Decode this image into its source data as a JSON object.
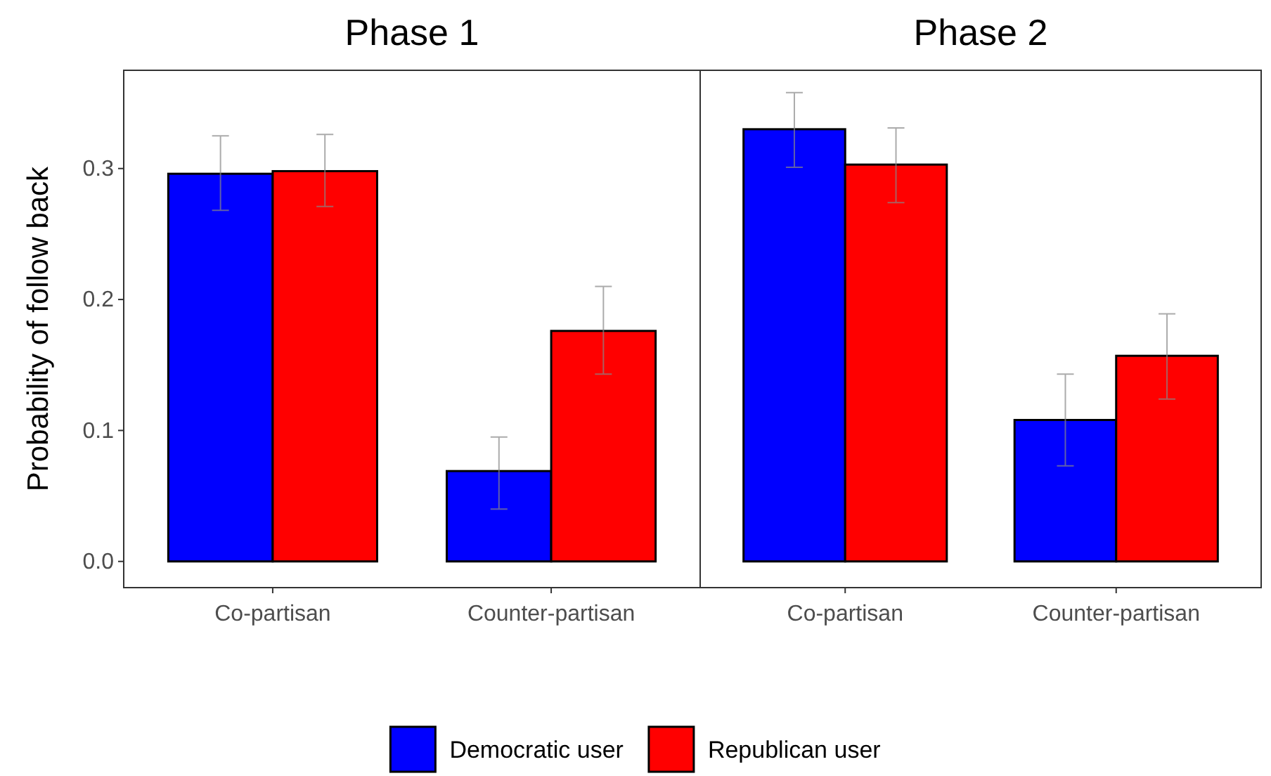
{
  "chart_data": [
    {
      "type": "bar",
      "title": "Phase 1",
      "ylabel": "Probability of follow back",
      "categories": [
        "Co-partisan",
        "Counter-partisan"
      ],
      "ylim": [
        -0.02,
        0.375
      ],
      "yticks": [
        {
          "value": 0,
          "label": "0.0"
        },
        0.1,
        0.2,
        0.3
      ],
      "grid": false,
      "legend": "bottom",
      "series": [
        {
          "name": "Democratic user",
          "color": "#0000ff",
          "values": [
            0.296,
            0.069
          ],
          "errors": [
            [
              0.268,
              0.325
            ],
            [
              0.04,
              0.095
            ]
          ]
        },
        {
          "name": "Republican user",
          "color": "#ff0000",
          "values": [
            0.298,
            0.176
          ],
          "errors": [
            [
              0.271,
              0.326
            ],
            [
              0.143,
              0.21
            ]
          ]
        }
      ]
    },
    {
      "type": "bar",
      "title": "Phase 2",
      "categories": [
        "Co-partisan",
        "Counter-partisan"
      ],
      "ylim": [
        -0.02,
        0.375
      ],
      "grid": false,
      "tick_labels": "x",
      "series": [
        {
          "name": "Democratic user",
          "color": "#0000ff",
          "values": [
            0.33,
            0.108
          ],
          "errors": [
            [
              0.301,
              0.358
            ],
            [
              0.073,
              0.143
            ]
          ]
        },
        {
          "name": "Republican user",
          "color": "#ff0000",
          "values": [
            0.303,
            0.157
          ],
          "errors": [
            [
              0.274,
              0.331
            ],
            [
              0.124,
              0.189
            ]
          ]
        }
      ]
    }
  ]
}
